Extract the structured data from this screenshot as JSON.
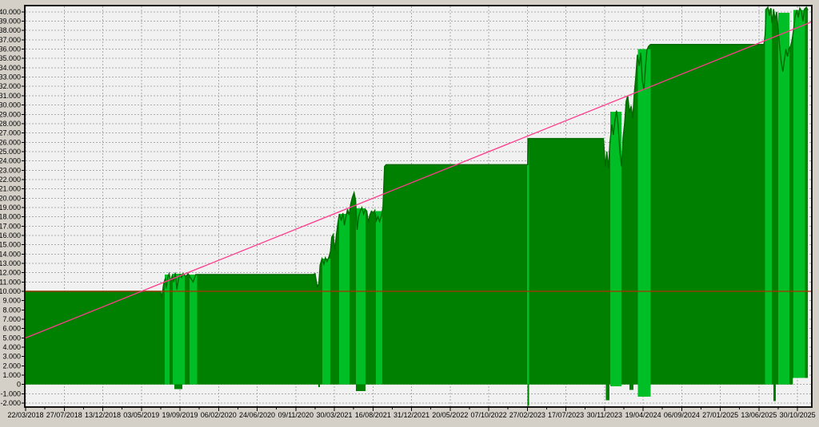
{
  "chart_data": {
    "type": "area",
    "x_unit": "tick_index",
    "x_axis": {
      "tick_labels": [
        "22/03/2018",
        "27/07/2018",
        "13/12/2018",
        "03/05/2019",
        "19/09/2019",
        "06/02/2020",
        "24/06/2020",
        "09/11/2020",
        "30/03/2021",
        "16/08/2021",
        "31/12/2021",
        "20/05/2022",
        "07/10/2022",
        "27/02/2023",
        "17/07/2023",
        "30/11/2023",
        "19/04/2024",
        "06/09/2024",
        "27/01/2025",
        "13/06/2025",
        "30/10/2025"
      ],
      "u_max": 20.35
    },
    "y_axis": {
      "min": -2000,
      "max": 40000,
      "step": 1000,
      "tick_labels": [
        "40.000",
        "39.000",
        "38.000",
        "37.000",
        "36.000",
        "35.000",
        "34.000",
        "33.000",
        "32.000",
        "31.000",
        "30.000",
        "29.000",
        "28.000",
        "27.000",
        "26.000",
        "25.000",
        "24.000",
        "23.000",
        "22.000",
        "21.000",
        "20.000",
        "19.000",
        "18.000",
        "17.000",
        "16.000",
        "15.000",
        "14.000",
        "13.000",
        "12.000",
        "11.000",
        "10.000",
        "9.000",
        "8.000",
        "7.000",
        "6.000",
        "5.000",
        "4.000",
        "3.000",
        "2.000",
        "1.000",
        "0",
        "-1.000",
        "-2.000"
      ]
    },
    "balance_curve": {
      "color": "#008000",
      "outline_color": "#006A00",
      "points": [
        [
          0,
          10
        ],
        [
          3.5,
          10
        ],
        [
          3.52,
          9.3
        ],
        [
          3.55,
          10
        ],
        [
          3.58,
          10.9
        ],
        [
          3.62,
          11.4
        ],
        [
          3.64,
          10.3
        ],
        [
          3.69,
          11.6
        ],
        [
          3.72,
          11.9
        ],
        [
          3.76,
          11.1
        ],
        [
          3.8,
          11.7
        ],
        [
          3.84,
          11
        ],
        [
          3.88,
          12
        ],
        [
          3.92,
          10.2
        ],
        [
          3.96,
          11.3
        ],
        [
          4,
          11.8
        ],
        [
          4.04,
          11.5
        ],
        [
          4.08,
          11.9
        ],
        [
          4.15,
          11.6
        ],
        [
          4.21,
          11.9
        ],
        [
          4.28,
          11.4
        ],
        [
          4.34,
          11
        ],
        [
          4.41,
          11.8
        ],
        [
          4.5,
          11.8
        ],
        [
          7.45,
          11.8
        ],
        [
          7.5,
          11.9
        ],
        [
          7.56,
          10.4
        ],
        [
          7.6,
          10.9
        ],
        [
          7.63,
          12.8
        ],
        [
          7.68,
          13.5
        ],
        [
          7.73,
          12.9
        ],
        [
          7.77,
          13.6
        ],
        [
          7.81,
          13.2
        ],
        [
          7.86,
          13.7
        ],
        [
          7.9,
          14.3
        ],
        [
          7.93,
          15.8
        ],
        [
          7.97,
          16.1
        ],
        [
          8.01,
          14.4
        ],
        [
          8.05,
          16
        ],
        [
          8.09,
          17.3
        ],
        [
          8.13,
          18.3
        ],
        [
          8.18,
          17.6
        ],
        [
          8.22,
          18.4
        ],
        [
          8.26,
          17.1
        ],
        [
          8.3,
          18
        ],
        [
          8.34,
          18.8
        ],
        [
          8.38,
          18.2
        ],
        [
          8.42,
          19.3
        ],
        [
          8.46,
          20
        ],
        [
          8.51,
          20.6
        ],
        [
          8.55,
          19.8
        ],
        [
          8.59,
          16.6
        ],
        [
          8.63,
          18
        ],
        [
          8.67,
          18.6
        ],
        [
          8.71,
          19
        ],
        [
          8.76,
          18.3
        ],
        [
          8.8,
          18.8
        ],
        [
          8.84,
          18.6
        ],
        [
          8.88,
          17.4
        ],
        [
          8.92,
          18.2
        ],
        [
          8.96,
          18.6
        ],
        [
          9.01,
          18.4
        ],
        [
          9.05,
          18.7
        ],
        [
          9.09,
          17.6
        ],
        [
          9.13,
          18
        ],
        [
          9.17,
          17.5
        ],
        [
          9.22,
          18.1
        ],
        [
          9.26,
          19
        ],
        [
          9.3,
          23.4
        ],
        [
          9.34,
          23.6
        ],
        [
          12.98,
          23.6
        ],
        [
          13.01,
          23.6
        ],
        [
          13.03,
          26.4
        ],
        [
          14.97,
          26.4
        ],
        [
          15.02,
          23.4
        ],
        [
          15.06,
          25
        ],
        [
          15.1,
          23.2
        ],
        [
          15.14,
          26
        ],
        [
          15.19,
          27.9
        ],
        [
          15.23,
          26.8
        ],
        [
          15.27,
          28.3
        ],
        [
          15.31,
          29.4
        ],
        [
          15.35,
          28
        ],
        [
          15.4,
          25
        ],
        [
          15.44,
          23.4
        ],
        [
          15.48,
          26.5
        ],
        [
          15.52,
          28
        ],
        [
          15.56,
          30.4
        ],
        [
          15.6,
          31
        ],
        [
          15.65,
          29.2
        ],
        [
          15.69,
          29.9
        ],
        [
          15.73,
          28.6
        ],
        [
          15.77,
          31.2
        ],
        [
          15.81,
          33
        ],
        [
          15.85,
          35.4
        ],
        [
          15.9,
          34.2
        ],
        [
          15.94,
          35.6
        ],
        [
          15.98,
          32.6
        ],
        [
          16.02,
          31.6
        ],
        [
          16.06,
          34
        ],
        [
          16.1,
          35.9
        ],
        [
          16.14,
          36.3
        ],
        [
          16.19,
          36.5
        ],
        [
          19.13,
          36.5
        ],
        [
          19.16,
          37.5
        ],
        [
          19.19,
          40.3
        ],
        [
          19.23,
          40.5
        ],
        [
          19.27,
          39.6
        ],
        [
          19.31,
          40.4
        ],
        [
          19.34,
          38.8
        ],
        [
          19.38,
          40.3
        ],
        [
          19.42,
          39.2
        ],
        [
          19.46,
          40
        ],
        [
          19.5,
          38
        ],
        [
          19.54,
          36.2
        ],
        [
          19.58,
          34.6
        ],
        [
          19.62,
          33.6
        ],
        [
          19.66,
          34.8
        ],
        [
          19.7,
          36
        ],
        [
          19.74,
          35.2
        ],
        [
          19.78,
          36.1
        ],
        [
          19.82,
          36.3
        ],
        [
          19.86,
          37
        ],
        [
          19.9,
          38.2
        ],
        [
          19.94,
          39.5
        ],
        [
          19.98,
          40.2
        ],
        [
          20.02,
          39.4
        ],
        [
          20.06,
          40.4
        ],
        [
          20.1,
          40.1
        ],
        [
          20.14,
          39
        ],
        [
          20.18,
          40.3
        ],
        [
          20.23,
          40.5
        ],
        [
          20.27,
          40.2
        ]
      ],
      "baseline": [
        [
          0,
          0
        ],
        [
          19.88,
          0
        ],
        [
          19.88,
          0.7
        ],
        [
          20.27,
          0.7
        ]
      ]
    },
    "equity_stripes": {
      "color": "#00BE26",
      "bars": [
        [
          3.61,
          3.73,
          11.8,
          0
        ],
        [
          3.81,
          4.12,
          11.9,
          0
        ],
        [
          4.25,
          4.45,
          11.8,
          0
        ],
        [
          7.69,
          7.9,
          13.5,
          0
        ],
        [
          8.12,
          8.39,
          18.3,
          0
        ],
        [
          8.56,
          8.81,
          18.9,
          0
        ],
        [
          9.08,
          9.24,
          18.6,
          0
        ],
        [
          12.99,
          13.04,
          26.4,
          0
        ],
        [
          15.15,
          15.44,
          29.3,
          -0.2
        ],
        [
          15.86,
          16.19,
          36,
          -1.3
        ],
        [
          19.16,
          19.33,
          40.3,
          0
        ],
        [
          19.5,
          19.79,
          39.9,
          0
        ],
        [
          19.89,
          20.19,
          40.2,
          0.7
        ]
      ]
    },
    "drawdown_notches": {
      "color": "#008000",
      "bars": [
        [
          3.85,
          4.06,
          -0.5
        ],
        [
          7.58,
          7.63,
          -0.3
        ],
        [
          8.56,
          8.81,
          -0.7
        ],
        [
          13,
          13.04,
          -2.3
        ],
        [
          15.03,
          15.13,
          -1.7
        ],
        [
          15.65,
          15.75,
          -0.6
        ],
        [
          19.38,
          19.44,
          -1.8
        ]
      ]
    },
    "trend_line": {
      "color": "#FF3C8C",
      "start_value": 5.0,
      "end_value": 38.9
    },
    "deposit_line": {
      "color": "#B03000",
      "value": 10.0
    },
    "grid": {
      "on": true,
      "color": "#ABABAB"
    },
    "legend_position": "none",
    "plot_background": "#F1F1F1",
    "window_background": "#D4D0C8",
    "border_color": "#141414"
  }
}
